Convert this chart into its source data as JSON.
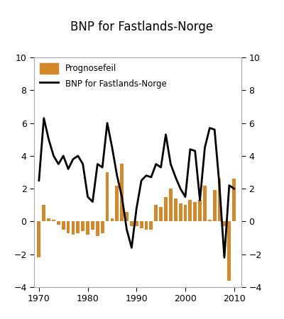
{
  "title": "BNP for Fastlands-Norge",
  "bar_label": "Prognosefeil",
  "line_label": "BNP for Fastlands-Norge",
  "bar_color": "#D4882A",
  "line_color": "#000000",
  "background_color": "#ffffff",
  "ylim": [
    -4,
    10
  ],
  "xlim": [
    1969.0,
    2011.5
  ],
  "yticks": [
    -4,
    -2,
    0,
    2,
    4,
    6,
    8,
    10
  ],
  "xticks": [
    1970,
    1980,
    1990,
    2000,
    2010
  ],
  "bar_years": [
    1970,
    1971,
    1972,
    1973,
    1974,
    1975,
    1976,
    1977,
    1978,
    1979,
    1980,
    1981,
    1982,
    1983,
    1984,
    1985,
    1986,
    1987,
    1988,
    1989,
    1990,
    1991,
    1992,
    1993,
    1994,
    1995,
    1996,
    1997,
    1998,
    1999,
    2000,
    2001,
    2002,
    2003,
    2004,
    2005,
    2006,
    2007,
    2008,
    2009,
    2010
  ],
  "bar_values": [
    -2.2,
    1.0,
    0.2,
    0.1,
    -0.2,
    -0.5,
    -0.7,
    -0.8,
    -0.7,
    -0.6,
    -0.8,
    -0.5,
    -0.9,
    -0.7,
    3.0,
    0.2,
    2.2,
    3.5,
    0.6,
    -0.3,
    -0.3,
    -0.4,
    -0.5,
    -0.5,
    1.0,
    0.9,
    1.5,
    2.0,
    1.4,
    1.1,
    1.0,
    1.3,
    1.2,
    1.3,
    2.2,
    0.1,
    1.9,
    2.6,
    -0.3,
    -3.6,
    2.6
  ],
  "line_years": [
    1970,
    1971,
    1972,
    1973,
    1974,
    1975,
    1976,
    1977,
    1978,
    1979,
    1980,
    1981,
    1982,
    1983,
    1984,
    1985,
    1986,
    1987,
    1988,
    1989,
    1990,
    1991,
    1992,
    1993,
    1994,
    1995,
    1996,
    1997,
    1998,
    1999,
    2000,
    2001,
    2002,
    2003,
    2004,
    2005,
    2006,
    2007,
    2008,
    2009,
    2010
  ],
  "line_values": [
    2.5,
    6.3,
    5.0,
    4.0,
    3.5,
    4.0,
    3.2,
    3.8,
    4.0,
    3.5,
    1.5,
    1.2,
    3.5,
    3.3,
    6.0,
    4.5,
    2.8,
    1.5,
    -0.5,
    -1.6,
    0.8,
    2.5,
    2.8,
    2.7,
    3.5,
    3.3,
    5.3,
    3.5,
    2.7,
    2.0,
    1.5,
    4.4,
    4.3,
    1.3,
    4.5,
    5.7,
    5.6,
    2.2,
    -2.2,
    2.2,
    2.0
  ]
}
